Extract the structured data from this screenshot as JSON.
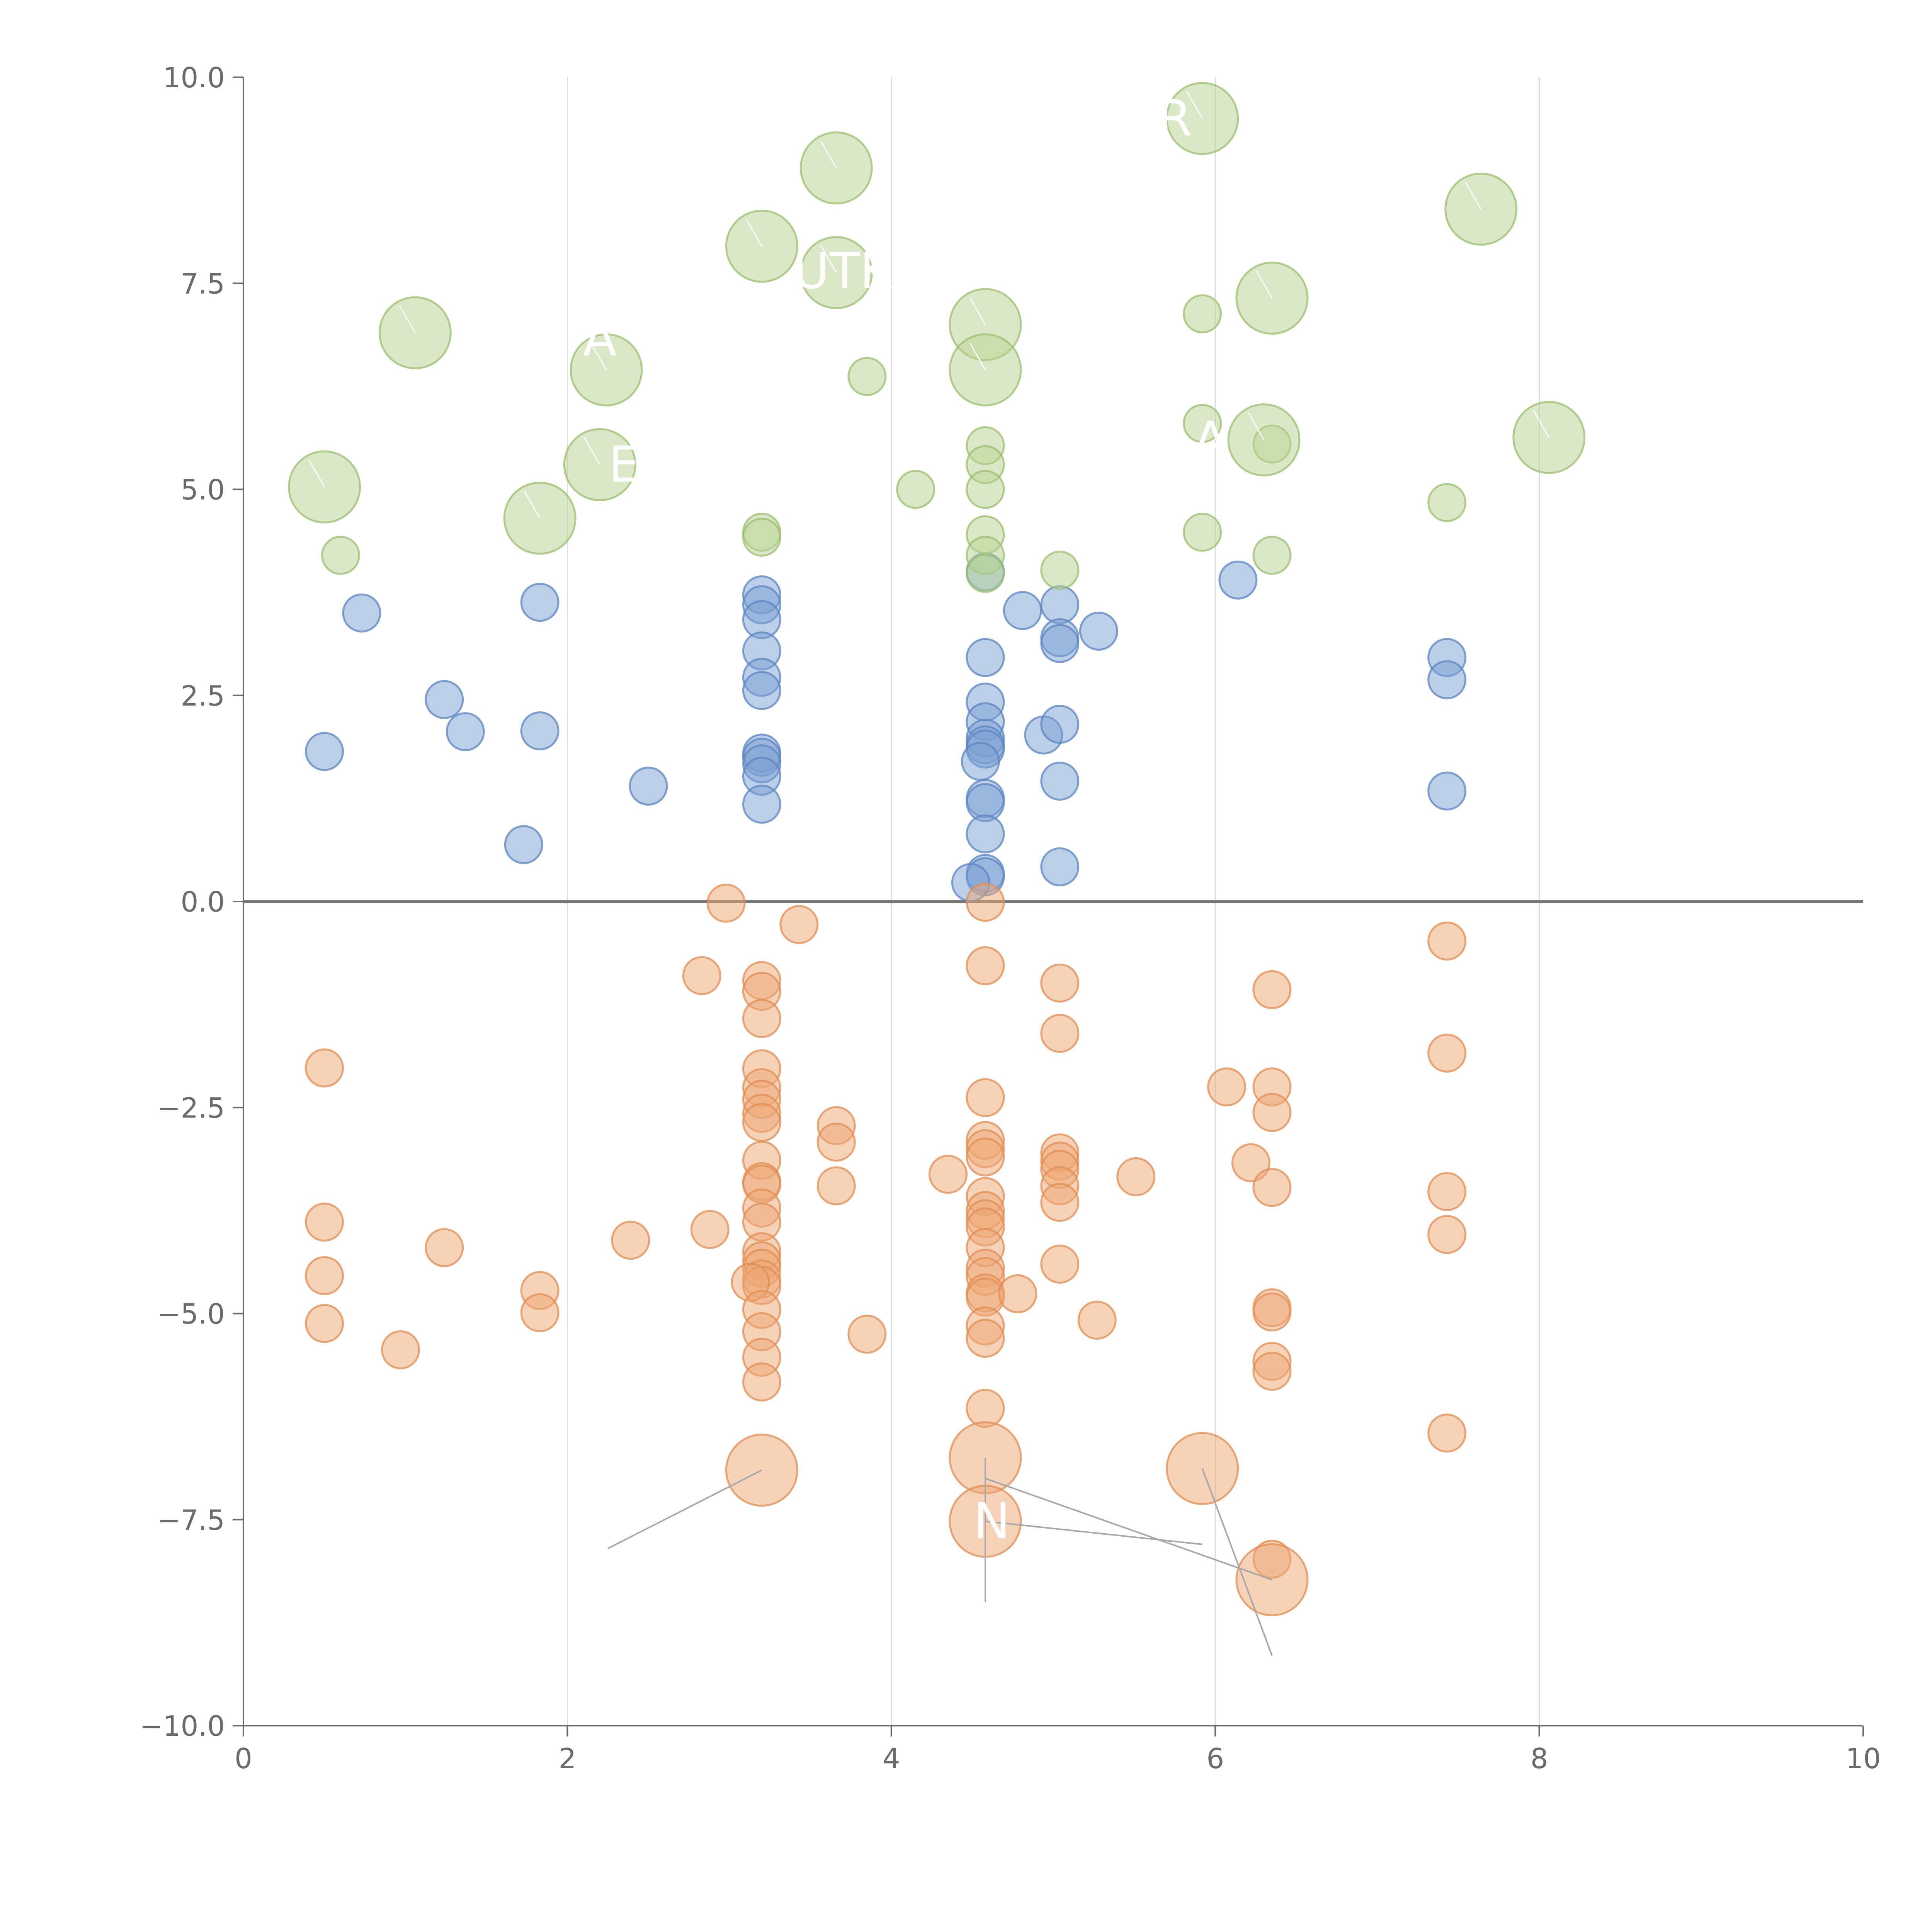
{
  "chart_data": {
    "type": "scatter",
    "title": "",
    "xlabel": "",
    "ylabel": "",
    "xlim": [
      0,
      10
    ],
    "ylim": [
      -10,
      10
    ],
    "grid": "vertical-at-major-ticks",
    "reference_line_y": 0,
    "x_ticks": [
      0,
      2,
      4,
      6,
      8,
      10
    ],
    "x_tick_labels": [
      "0",
      "2",
      "4",
      "6",
      "8",
      "10"
    ],
    "y_ticks": [
      10,
      7.5,
      5,
      2.5,
      0,
      -2.5,
      -5,
      -7.5,
      -10
    ],
    "y_tick_labels": [
      "10.0",
      "7.5",
      "5.0",
      "2.5",
      "0.0",
      "−2.5",
      "−5.0",
      "−7.5",
      "−10.0"
    ],
    "colors": {
      "blue": "#7a9fd1",
      "blue_edge": "#5b84c0",
      "orange": "#eea673",
      "orange_edge": "#e08d52",
      "green": "#b7d291",
      "green_edge": "#9bbf6e"
    },
    "series": [
      {
        "name": "blue",
        "color_key": "blue",
        "size": "small",
        "points": [
          [
            0.5,
            1.82
          ],
          [
            0.73,
            3.5
          ],
          [
            1.24,
            2.45
          ],
          [
            1.37,
            2.06
          ],
          [
            1.83,
            3.63
          ],
          [
            1.83,
            2.07
          ],
          [
            1.73,
            0.69
          ],
          [
            2.5,
            1.4
          ],
          [
            3.2,
            3.72
          ],
          [
            3.2,
            3.6
          ],
          [
            3.2,
            3.42
          ],
          [
            3.2,
            3.04
          ],
          [
            3.2,
            2.72
          ],
          [
            3.2,
            2.56
          ],
          [
            3.2,
            1.8
          ],
          [
            3.2,
            1.75
          ],
          [
            3.2,
            1.67
          ],
          [
            3.2,
            1.52
          ],
          [
            3.2,
            1.18
          ],
          [
            4.58,
            4.0
          ],
          [
            4.58,
            2.96
          ],
          [
            4.58,
            2.42
          ],
          [
            4.58,
            2.18
          ],
          [
            4.58,
            1.98
          ],
          [
            4.58,
            1.9
          ],
          [
            4.58,
            1.85
          ],
          [
            4.55,
            1.7
          ],
          [
            4.58,
            1.25
          ],
          [
            4.58,
            1.2
          ],
          [
            4.58,
            0.82
          ],
          [
            4.58,
            0.34
          ],
          [
            4.58,
            0.3
          ],
          [
            4.49,
            0.23
          ],
          [
            4.81,
            3.53
          ],
          [
            4.94,
            2.02
          ],
          [
            5.04,
            3.6
          ],
          [
            5.04,
            3.2
          ],
          [
            5.04,
            3.13
          ],
          [
            5.04,
            2.15
          ],
          [
            5.04,
            1.46
          ],
          [
            5.04,
            0.42
          ],
          [
            5.28,
            3.28
          ],
          [
            6.14,
            3.9
          ],
          [
            7.43,
            2.96
          ],
          [
            7.43,
            2.69
          ],
          [
            7.43,
            1.34
          ]
        ]
      },
      {
        "name": "orange",
        "color_key": "orange",
        "size": "small",
        "points": [
          [
            0.5,
            -2.02
          ],
          [
            0.5,
            -3.89
          ],
          [
            0.5,
            -4.54
          ],
          [
            0.5,
            -5.12
          ],
          [
            0.97,
            -5.44
          ],
          [
            1.24,
            -4.2
          ],
          [
            1.83,
            -4.72
          ],
          [
            1.83,
            -4.99
          ],
          [
            2.39,
            -4.11
          ],
          [
            2.83,
            -0.9
          ],
          [
            2.88,
            -3.98
          ],
          [
            2.98,
            -0.02
          ],
          [
            3.43,
            -0.28
          ],
          [
            3.2,
            -0.96
          ],
          [
            3.2,
            -1.09
          ],
          [
            3.2,
            -1.42
          ],
          [
            3.2,
            -2.03
          ],
          [
            3.2,
            -2.26
          ],
          [
            3.2,
            -2.4
          ],
          [
            3.2,
            -2.57
          ],
          [
            3.2,
            -2.68
          ],
          [
            3.2,
            -3.14
          ],
          [
            3.2,
            -3.4
          ],
          [
            3.2,
            -3.43
          ],
          [
            3.2,
            -3.72
          ],
          [
            3.2,
            -3.89
          ],
          [
            3.2,
            -4.25
          ],
          [
            3.2,
            -4.36
          ],
          [
            3.2,
            -4.45
          ],
          [
            3.2,
            -4.58
          ],
          [
            3.2,
            -4.66
          ],
          [
            3.13,
            -4.62
          ],
          [
            3.2,
            -4.95
          ],
          [
            3.2,
            -5.22
          ],
          [
            3.2,
            -5.53
          ],
          [
            3.2,
            -5.83
          ],
          [
            3.66,
            -2.72
          ],
          [
            3.66,
            -2.92
          ],
          [
            3.66,
            -3.45
          ],
          [
            3.85,
            -5.25
          ],
          [
            4.35,
            -3.31
          ],
          [
            4.58,
            -0.01
          ],
          [
            4.58,
            -0.78
          ],
          [
            4.58,
            -2.38
          ],
          [
            4.58,
            -2.9
          ],
          [
            4.58,
            -3.0
          ],
          [
            4.58,
            -3.1
          ],
          [
            4.58,
            -3.58
          ],
          [
            4.58,
            -3.75
          ],
          [
            4.58,
            -3.85
          ],
          [
            4.58,
            -3.95
          ],
          [
            4.58,
            -4.2
          ],
          [
            4.58,
            -4.45
          ],
          [
            4.58,
            -4.55
          ],
          [
            4.58,
            -4.75
          ],
          [
            4.58,
            -4.8
          ],
          [
            4.58,
            -5.15
          ],
          [
            4.58,
            -5.3
          ],
          [
            4.58,
            -6.15
          ],
          [
            4.78,
            -4.76
          ],
          [
            5.04,
            -0.99
          ],
          [
            5.04,
            -1.6
          ],
          [
            5.04,
            -3.05
          ],
          [
            5.04,
            -3.15
          ],
          [
            5.04,
            -3.25
          ],
          [
            5.04,
            -3.45
          ],
          [
            5.04,
            -3.65
          ],
          [
            5.04,
            -4.4
          ],
          [
            5.27,
            -5.08
          ],
          [
            5.51,
            -3.34
          ],
          [
            6.07,
            -2.25
          ],
          [
            6.22,
            -3.17
          ],
          [
            6.35,
            -1.07
          ],
          [
            6.35,
            -2.25
          ],
          [
            6.35,
            -2.56
          ],
          [
            6.35,
            -3.47
          ],
          [
            6.35,
            -4.93
          ],
          [
            6.35,
            -4.98
          ],
          [
            6.35,
            -5.58
          ],
          [
            6.35,
            -5.7
          ],
          [
            6.35,
            -7.98
          ],
          [
            7.43,
            -0.48
          ],
          [
            7.43,
            -1.84
          ],
          [
            7.43,
            -3.52
          ],
          [
            7.43,
            -4.04
          ],
          [
            7.43,
            -6.45
          ]
        ]
      },
      {
        "name": "orange-highlighted",
        "color_key": "orange",
        "size": "large",
        "points": [
          [
            3.2,
            -6.9
          ],
          [
            4.58,
            -6.75
          ],
          [
            4.58,
            -7.52
          ],
          [
            5.92,
            -6.88
          ],
          [
            6.35,
            -8.23
          ]
        ]
      },
      {
        "name": "green",
        "color_key": "green",
        "size": "small",
        "points": [
          [
            0.6,
            4.2
          ],
          [
            3.2,
            4.48
          ],
          [
            3.2,
            4.42
          ],
          [
            3.85,
            6.37
          ],
          [
            4.15,
            5.0
          ],
          [
            4.58,
            5.53
          ],
          [
            4.58,
            5.3
          ],
          [
            4.58,
            5.0
          ],
          [
            4.58,
            4.45
          ],
          [
            4.58,
            4.2
          ],
          [
            4.58,
            3.98
          ],
          [
            5.04,
            4.02
          ],
          [
            5.92,
            7.13
          ],
          [
            5.92,
            5.8
          ],
          [
            5.92,
            4.48
          ],
          [
            6.35,
            5.55
          ],
          [
            6.35,
            4.2
          ],
          [
            7.43,
            4.84
          ]
        ]
      },
      {
        "name": "green-highlighted",
        "color_key": "green",
        "size": "large",
        "points": [
          [
            0.5,
            5.03
          ],
          [
            1.06,
            6.9
          ],
          [
            1.83,
            4.65
          ],
          [
            2.2,
            5.3
          ],
          [
            2.24,
            6.45
          ],
          [
            3.2,
            7.95
          ],
          [
            3.66,
            8.9
          ],
          [
            3.66,
            7.63
          ],
          [
            4.58,
            7.0
          ],
          [
            4.58,
            6.45
          ],
          [
            5.92,
            9.5
          ],
          [
            6.35,
            7.32
          ],
          [
            6.3,
            5.6
          ],
          [
            7.64,
            8.4
          ],
          [
            8.06,
            5.63
          ]
        ]
      }
    ],
    "annotations": [
      {
        "text": "UTK",
        "x": 3.7,
        "y": 7.65,
        "target": [
          3.66,
          7.63
        ]
      },
      {
        "text": "N",
        "x": 4.62,
        "y": -7.52,
        "target": [
          4.58,
          -7.52
        ]
      },
      {
        "text": "E",
        "x": 2.35,
        "y": 5.3,
        "target": [
          2.2,
          5.3
        ]
      },
      {
        "text": "R",
        "x": 5.75,
        "y": 9.5,
        "target": [
          5.92,
          9.5
        ]
      },
      {
        "text": "A",
        "x": 5.97,
        "y": 5.6,
        "target": [
          6.3,
          5.6
        ]
      },
      {
        "text": "A",
        "x": 2.2,
        "y": 6.83,
        "target": [
          2.24,
          6.45
        ]
      }
    ]
  }
}
